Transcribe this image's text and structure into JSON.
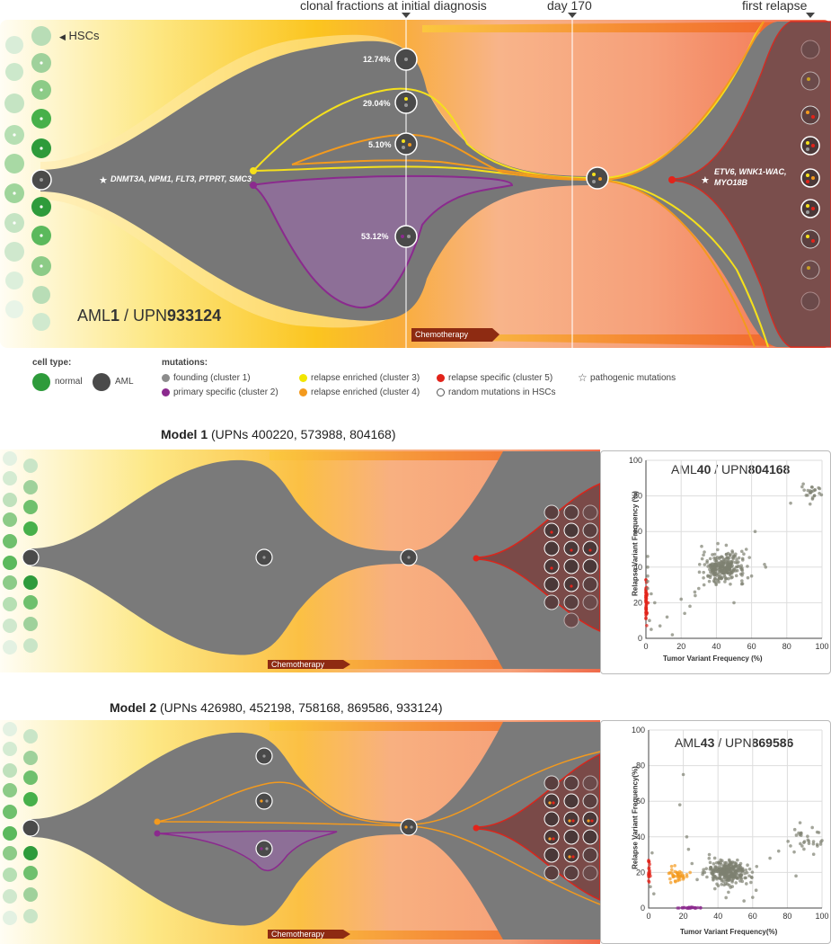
{
  "headers": {
    "clonal": "clonal fractions at initial diagnosis",
    "day": "day 170",
    "relapse": "first relapse",
    "hscs": "HSCs"
  },
  "main_figure": {
    "title_pre": "AML",
    "title_num": "1",
    "title_mid": " / UPN",
    "title_upn": "933124",
    "founding_mutations": "DNMT3A, NPM1, FLT3, PTPRT, SMC3",
    "relapse_mutations_line1": "ETV6, WNK1-WAC,",
    "relapse_mutations_line2": "MYO18B",
    "fractions": [
      "12.74%",
      "29.04%",
      "5.10%",
      "53.12%"
    ],
    "chemo": "Chemotherapy"
  },
  "legend": {
    "cell_type_title": "cell type:",
    "normal": "normal",
    "aml": "AML",
    "mutations_title": "mutations:",
    "items": [
      {
        "label": "founding (cluster 1)",
        "color": "#8c8c8c"
      },
      {
        "label": "primary specific (cluster 2)",
        "color": "#8b2a8e"
      },
      {
        "label": "relapse enriched (cluster 3)",
        "color": "#f2e600"
      },
      {
        "label": "relapse enriched (cluster 4)",
        "color": "#f39a1e"
      },
      {
        "label": "relapse specific (cluster 5)",
        "color": "#e2231a"
      },
      {
        "label": "random mutations in HSCs",
        "color": "#ffffff"
      },
      {
        "label": "pathogenic mutations",
        "color": "none"
      }
    ]
  },
  "model1": {
    "title_bold": "Model 1",
    "title_rest": " (UPNs 400220, 573988, 804168)",
    "chemo": "Chemotherapy"
  },
  "model2": {
    "title_bold": "Model 2",
    "title_rest": " (UPNs 426980, 452198, 758168, 869586, 933124)",
    "chemo": "Chemotherapy"
  },
  "chart_data": [
    {
      "type": "scatter",
      "title_pre": "AML",
      "title_num": "40",
      "title_mid": " / UPN",
      "title_upn": "804168",
      "xlabel": "Tumor Variant Frequency (%)",
      "ylabel": "Relapse Variant Frequency (%)",
      "xlim": [
        0,
        100
      ],
      "ylim": [
        0,
        100
      ],
      "xticks": [
        0,
        20,
        40,
        60,
        80,
        100
      ],
      "yticks": [
        0,
        20,
        40,
        60,
        80,
        100
      ],
      "grid": true,
      "series": [
        {
          "color": "#7d8071",
          "cluster": {
            "center": [
              44,
              40
            ],
            "spread": [
              6,
              4
            ],
            "count": 260
          }
        },
        {
          "color": "#7d8071",
          "cluster": {
            "center": [
              95,
              82
            ],
            "spread": [
              3,
              2.5
            ],
            "count": 25
          }
        },
        {
          "color": "#e2231a",
          "cluster": {
            "center": [
              0,
              21
            ],
            "spread": [
              0.4,
              6
            ],
            "count": 50
          }
        },
        {
          "color": "#7d8071",
          "points": [
            [
              1,
              46
            ],
            [
              1,
              40
            ],
            [
              1,
              35
            ],
            [
              1,
              32
            ],
            [
              1,
              28
            ],
            [
              3,
              25
            ],
            [
              5,
              20
            ],
            [
              8,
              7
            ],
            [
              12,
              12
            ],
            [
              15,
              2
            ],
            [
              20,
              22
            ],
            [
              22,
              14
            ],
            [
              25,
              18
            ],
            [
              28,
              24
            ],
            [
              30,
              28
            ],
            [
              33,
              30
            ],
            [
              36,
              32
            ],
            [
              55,
              44
            ],
            [
              57,
              50
            ],
            [
              60,
              35
            ],
            [
              62,
              60
            ],
            [
              68,
              40
            ],
            [
              50,
              20
            ],
            [
              2,
              10
            ],
            [
              3,
              5
            ]
          ]
        }
      ]
    },
    {
      "type": "scatter",
      "title_pre": "AML",
      "title_num": "43",
      "title_mid": " / UPN",
      "title_upn": "869586",
      "xlabel": "Tumor Variant Frequency(%)",
      "ylabel": "Relapse Variant Frequency(%)",
      "xlim": [
        0,
        100
      ],
      "ylim": [
        0,
        100
      ],
      "xticks": [
        0,
        20,
        40,
        60,
        80,
        100
      ],
      "yticks": [
        0,
        20,
        40,
        60,
        80,
        100
      ],
      "grid": true,
      "series": [
        {
          "color": "#7d8071",
          "cluster": {
            "center": [
              46,
              20
            ],
            "spread": [
              6,
              3.5
            ],
            "count": 280
          }
        },
        {
          "color": "#7d8071",
          "cluster": {
            "center": [
              92,
              38
            ],
            "spread": [
              5,
              3.5
            ],
            "count": 30
          }
        },
        {
          "color": "#f39a1e",
          "cluster": {
            "center": [
              16,
              19
            ],
            "spread": [
              3,
              2
            ],
            "count": 40
          }
        },
        {
          "color": "#8b2a8e",
          "cluster": {
            "center": [
              24,
              0
            ],
            "spread": [
              3,
              0.3
            ],
            "count": 30
          }
        },
        {
          "color": "#e2231a",
          "cluster": {
            "center": [
              0,
              20
            ],
            "spread": [
              0.4,
              4
            ],
            "count": 20
          }
        },
        {
          "color": "#7d8071",
          "points": [
            [
              20,
              75
            ],
            [
              18,
              58
            ],
            [
              22,
              40
            ],
            [
              23,
              33
            ],
            [
              25,
              25
            ],
            [
              28,
              16
            ],
            [
              60,
              6
            ],
            [
              62,
              10
            ],
            [
              55,
              4
            ],
            [
              35,
              30
            ],
            [
              70,
              28
            ],
            [
              75,
              32
            ],
            [
              2,
              31
            ],
            [
              1,
              12
            ],
            [
              3,
              8
            ],
            [
              85,
              18
            ],
            [
              88,
              42
            ]
          ]
        }
      ]
    }
  ]
}
